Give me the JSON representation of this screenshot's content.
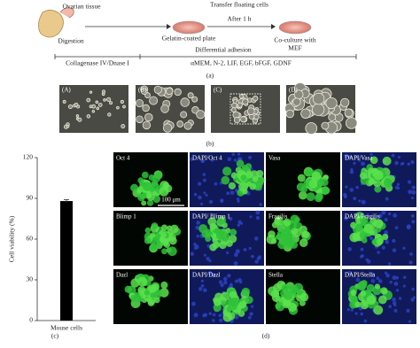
{
  "diagram": {
    "ovary": "Ovarian tissue",
    "digestion": "Digestion",
    "transfer": "Transfer floating cells",
    "after": "After 1 h",
    "plate": "Gelatin-coated plate",
    "coculture": [
      "Co-culture with",
      "MEF"
    ],
    "adhesion": "Differential adhesion",
    "enzymes": "Collagenase IV/Dnase I",
    "medium": "αMEM, N-2, LIF, EGF, bFGF, GDNF",
    "label": "(a)"
  },
  "phase_images": {
    "labels": [
      "(A)",
      "(B)",
      "(C)",
      "(D)"
    ],
    "label": "(b)"
  },
  "chart_data": {
    "type": "bar",
    "y_label": "Cell viability (%)",
    "categories": [
      "Mouse cells"
    ],
    "values": [
      88
    ],
    "errors": [
      1
    ],
    "color": "#000000",
    "ylim": [
      0,
      120
    ],
    "yticks": [
      0,
      30,
      60,
      90,
      120
    ],
    "label": "(c)"
  },
  "fluorescence": {
    "labels": [
      "Oct 4",
      "DAPI/Oct 4",
      "Vasa",
      "DAPI/Vasa",
      "Blimp 1",
      "DAPI/ Blimp 1",
      "Fragilis",
      "DAPI/Fragilis",
      "Dazl",
      "DAPI/Dazl",
      "Stella",
      "DAPI/Stella"
    ],
    "scale": "100 μm",
    "label": "(d)"
  }
}
